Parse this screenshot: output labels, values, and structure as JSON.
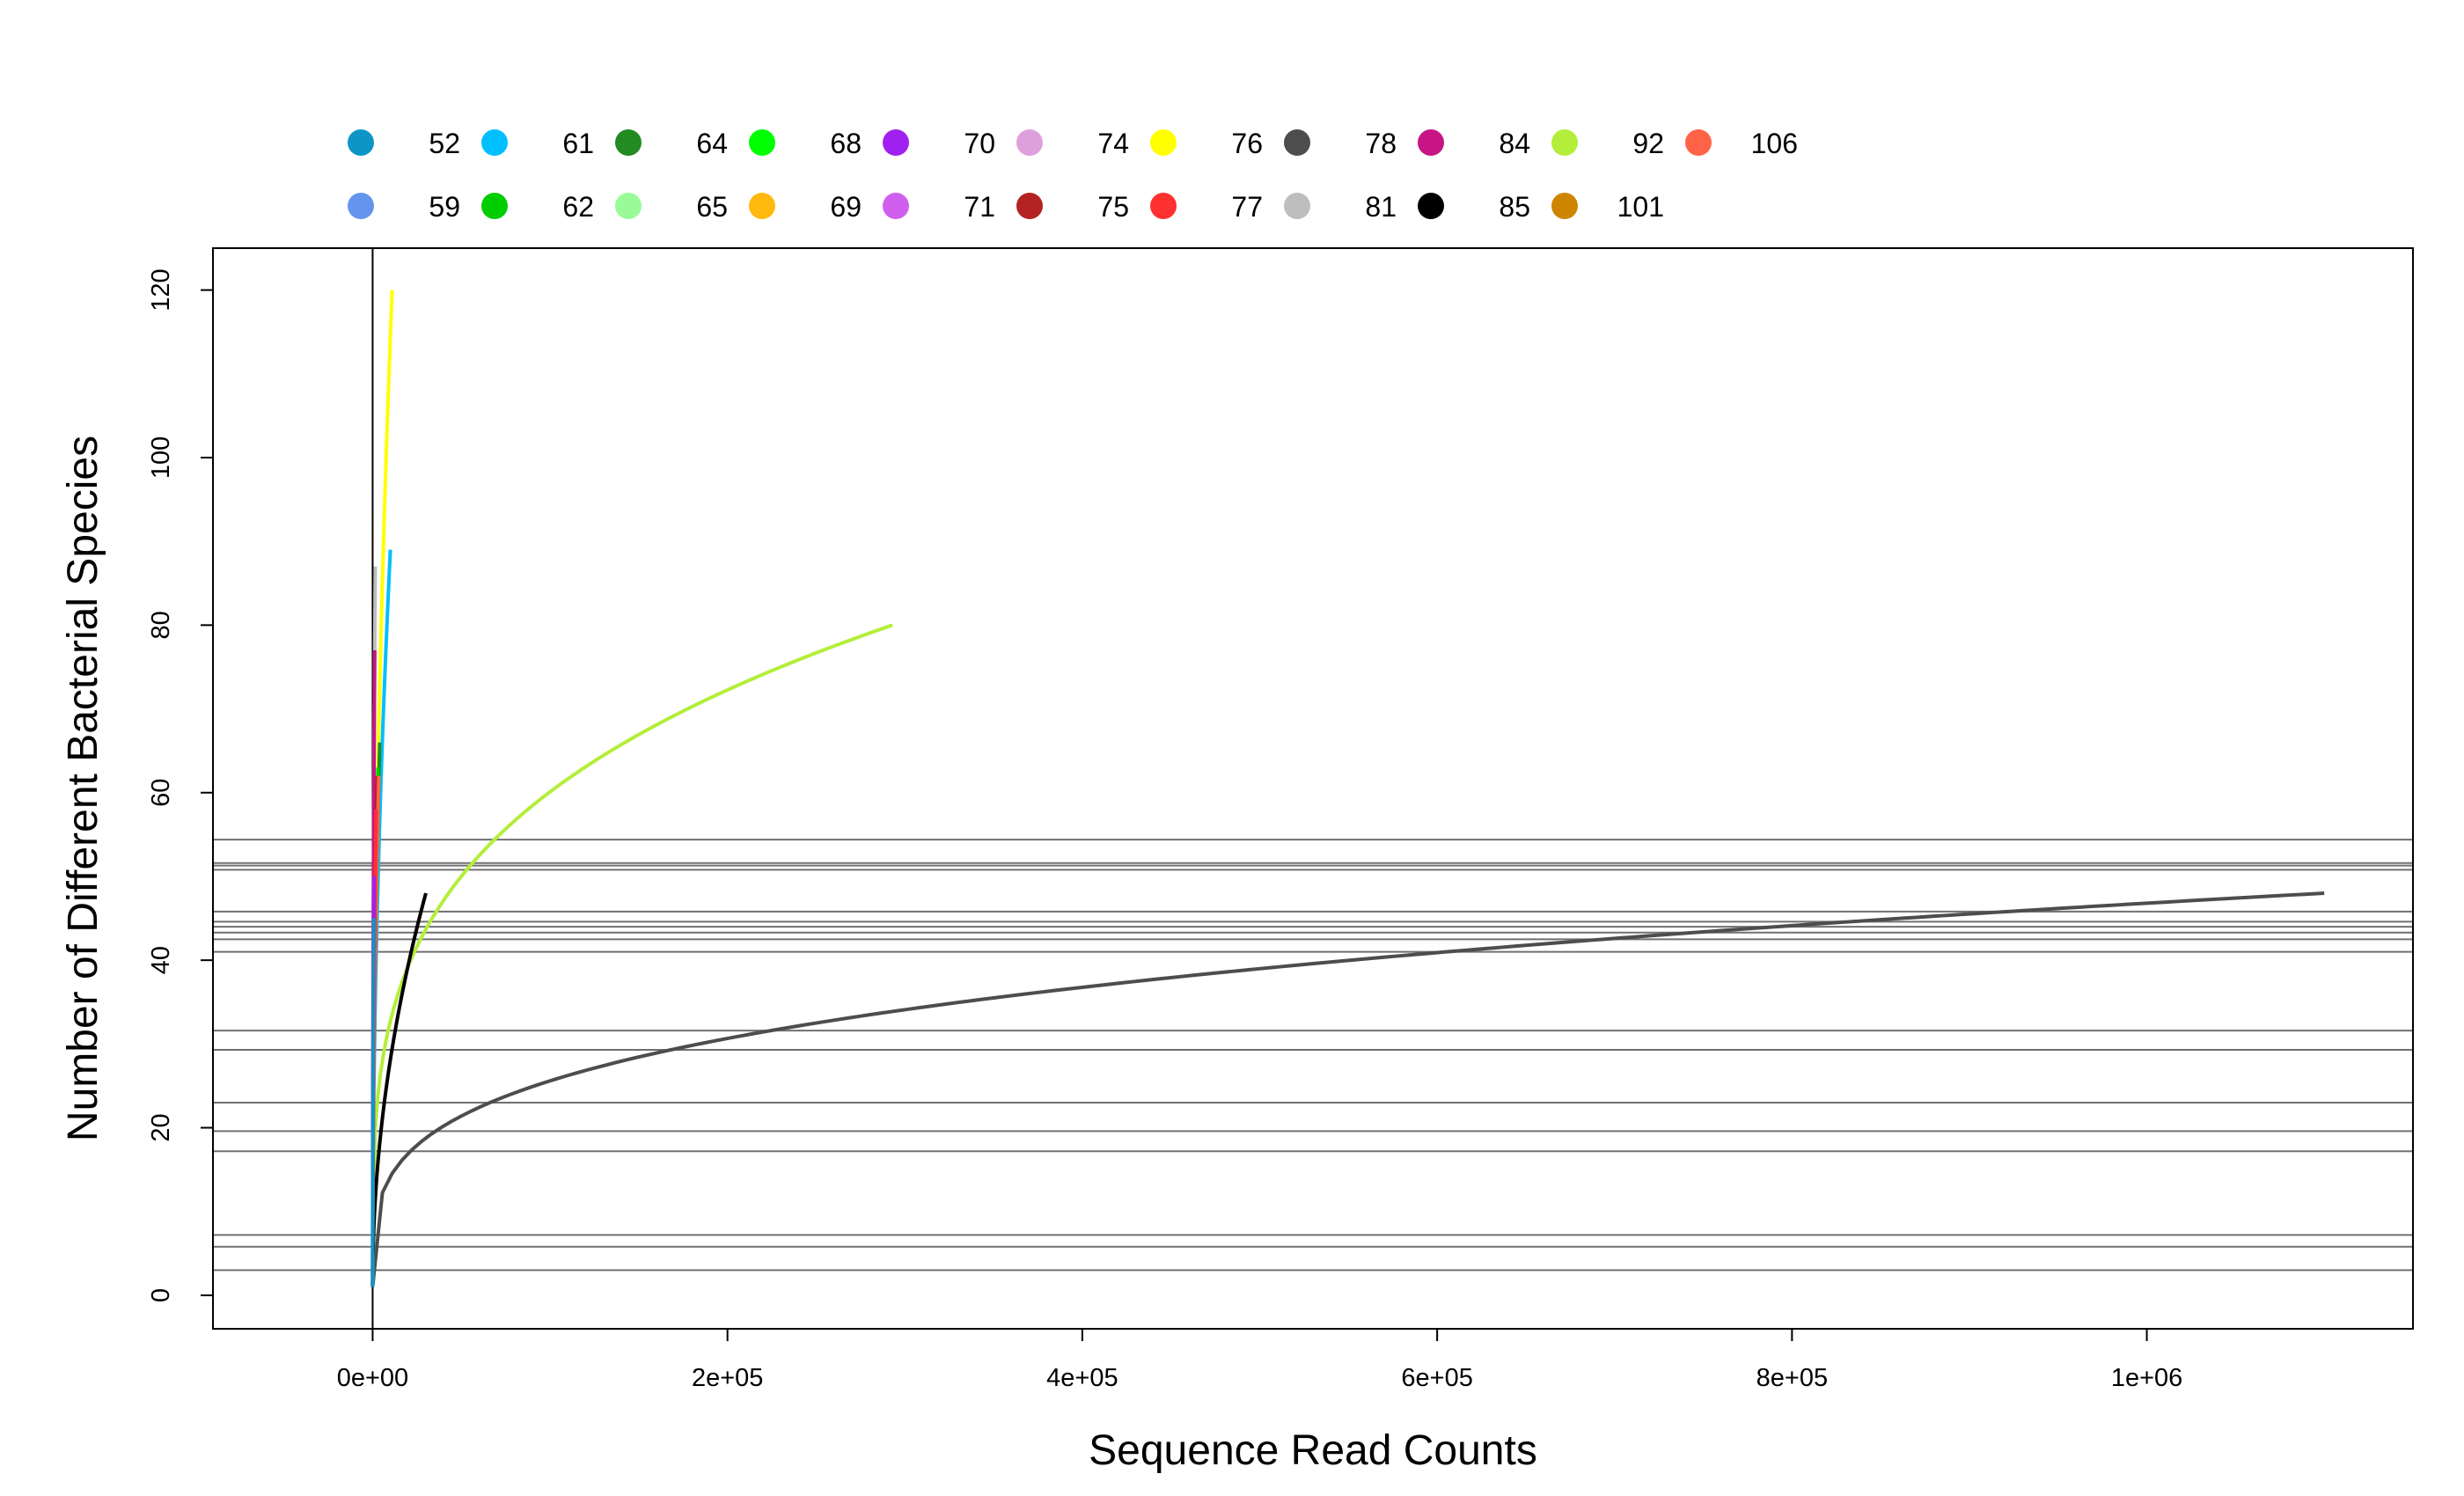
{
  "chart_data": {
    "type": "line",
    "title": "",
    "xlabel": "Sequence Read Counts",
    "ylabel": "Number of Different Bacterial Species",
    "xlim": [
      -90000,
      1150000
    ],
    "ylim": [
      -4,
      125
    ],
    "x_ticks": [
      {
        "value": 0,
        "label": "0e+00"
      },
      {
        "value": 200000,
        "label": "2e+05"
      },
      {
        "value": 400000,
        "label": "4e+05"
      },
      {
        "value": 600000,
        "label": "6e+05"
      },
      {
        "value": 800000,
        "label": "8e+05"
      },
      {
        "value": 1000000,
        "label": "1e+06"
      }
    ],
    "y_ticks": [
      {
        "value": 0,
        "label": "0"
      },
      {
        "value": 20,
        "label": "20"
      },
      {
        "value": 40,
        "label": "40"
      },
      {
        "value": 60,
        "label": "60"
      },
      {
        "value": 80,
        "label": "80"
      },
      {
        "value": 100,
        "label": "100"
      },
      {
        "value": 120,
        "label": "120"
      }
    ],
    "vertical_reference_x": 0,
    "horizontal_reference_lines": [
      3,
      5.8,
      7.2,
      17.2,
      19.6,
      23,
      29.3,
      31.6,
      41,
      42.5,
      43.3,
      44,
      44.6,
      45.8,
      50.8,
      51.3,
      51.6,
      54.4
    ],
    "grid": false,
    "legend": {
      "placement": "top",
      "columns": 12,
      "items": [
        {
          "label": "52",
          "color": "#0e95c8"
        },
        {
          "label": "59",
          "color": "#6495ed"
        },
        {
          "label": "61",
          "color": "#00bfff"
        },
        {
          "label": "62",
          "color": "#00cd00"
        },
        {
          "label": "64",
          "color": "#228b22"
        },
        {
          "label": "65",
          "color": "#98fb98"
        },
        {
          "label": "68",
          "color": "#00ff00"
        },
        {
          "label": "69",
          "color": "#ffb90f"
        },
        {
          "label": "70",
          "color": "#a020f0"
        },
        {
          "label": "71",
          "color": "#d15fee"
        },
        {
          "label": "74",
          "color": "#dda0dd"
        },
        {
          "label": "75",
          "color": "#b22222"
        },
        {
          "label": "76",
          "color": "#ffff00"
        },
        {
          "label": "77",
          "color": "#ff3030"
        },
        {
          "label": "78",
          "color": "#4d4d4d"
        },
        {
          "label": "81",
          "color": "#bebebe"
        },
        {
          "label": "84",
          "color": "#c71585"
        },
        {
          "label": "85",
          "color": "#000000"
        },
        {
          "label": "92",
          "color": "#b3ee3a"
        },
        {
          "label": "101",
          "color": "#cd8500"
        },
        {
          "label": "106",
          "color": "#ff6347"
        }
      ]
    },
    "series": [
      {
        "color": "#4d4d4d",
        "x_max": 1100000,
        "y_max": 48
      },
      {
        "color": "#b3ee3a",
        "x_max": 293000,
        "y_max": 80
      },
      {
        "color": "#000000",
        "x_max": 30000,
        "y_max": 48
      },
      {
        "color": "#ffff00",
        "x_max": 11000,
        "y_max": 120
      },
      {
        "color": "#00bfff",
        "x_max": 10000,
        "y_max": 89
      },
      {
        "color": "#bebebe",
        "x_max": 1500,
        "y_max": 87
      },
      {
        "color": "#c71585",
        "x_max": 1200,
        "y_max": 77
      },
      {
        "color": "#228b22",
        "x_max": 4000,
        "y_max": 66
      },
      {
        "color": "#00cd00",
        "x_max": 3000,
        "y_max": 63
      },
      {
        "color": "#b22222",
        "x_max": 2500,
        "y_max": 62
      },
      {
        "color": "#ff6347",
        "x_max": 3500,
        "y_max": 62
      },
      {
        "color": "#ff3030",
        "x_max": 2000,
        "y_max": 58
      },
      {
        "color": "#a020f0",
        "x_max": 800,
        "y_max": 50
      },
      {
        "color": "#0e95c8",
        "x_max": 700,
        "y_max": 45
      }
    ]
  }
}
